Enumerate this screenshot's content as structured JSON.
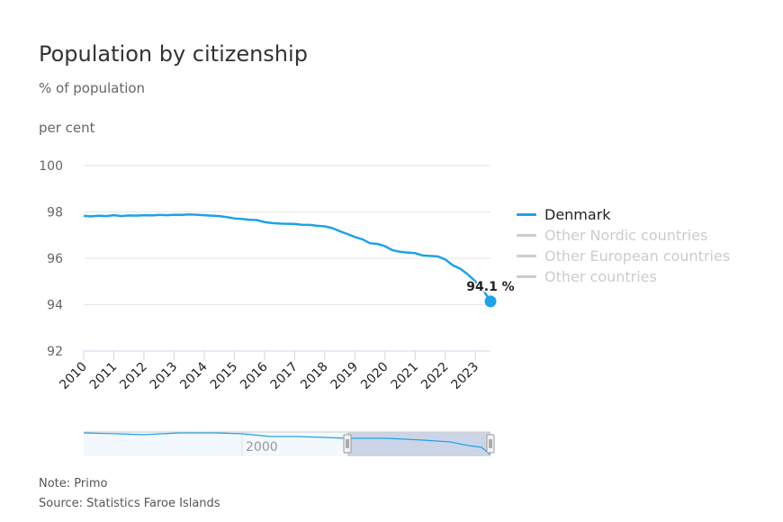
{
  "title": "Population by citizenship",
  "subtitle": "% of population",
  "unit_label": "per cent",
  "notes": {
    "note": "Note: Primo",
    "source": "Source: Statistics Faroe Islands"
  },
  "colors": {
    "series_active": "#1fa2e6",
    "series_inactive": "#cccccc",
    "grid": "#e6e6e6",
    "navigator_mask": "#c5cfe3"
  },
  "legend": [
    {
      "label": "Denmark",
      "active": true
    },
    {
      "label": "Other Nordic countries",
      "active": false
    },
    {
      "label": "Other European countries",
      "active": false
    },
    {
      "label": "Other countries",
      "active": false
    }
  ],
  "navigator": {
    "label": "2000"
  },
  "chart_data": {
    "type": "line",
    "title": "Population by citizenship",
    "subtitle": "% of population",
    "ylabel": "per cent",
    "xlabel": "",
    "ylim": [
      92,
      100
    ],
    "yticks": [
      92,
      94,
      96,
      98,
      100
    ],
    "xlim": [
      2010,
      2023.5
    ],
    "xticks": [
      "2010",
      "2011",
      "2012",
      "2013",
      "2014",
      "2015",
      "2016",
      "2017",
      "2018",
      "2019",
      "2020",
      "2021",
      "2022",
      "2023"
    ],
    "grid": true,
    "legend_position": "right",
    "end_label": "94.1 %",
    "series": [
      {
        "name": "Denmark",
        "visible": true,
        "x": [
          2010.0,
          2010.25,
          2010.5,
          2010.75,
          2011.0,
          2011.25,
          2011.5,
          2011.75,
          2012.0,
          2012.25,
          2012.5,
          2012.75,
          2013.0,
          2013.25,
          2013.5,
          2013.75,
          2014.0,
          2014.25,
          2014.5,
          2014.75,
          2015.0,
          2015.25,
          2015.5,
          2015.75,
          2016.0,
          2016.25,
          2016.5,
          2016.75,
          2017.0,
          2017.25,
          2017.5,
          2017.75,
          2018.0,
          2018.25,
          2018.5,
          2018.75,
          2019.0,
          2019.25,
          2019.5,
          2019.75,
          2020.0,
          2020.25,
          2020.5,
          2020.75,
          2021.0,
          2021.25,
          2021.5,
          2021.75,
          2022.0,
          2022.25,
          2022.5,
          2022.75,
          2023.0,
          2023.25,
          2023.5
        ],
        "values": [
          97.83,
          97.81,
          97.84,
          97.82,
          97.86,
          97.82,
          97.85,
          97.84,
          97.86,
          97.85,
          97.87,
          97.86,
          97.88,
          97.87,
          97.89,
          97.88,
          97.86,
          97.84,
          97.82,
          97.78,
          97.72,
          97.7,
          97.66,
          97.65,
          97.56,
          97.52,
          97.5,
          97.49,
          97.48,
          97.45,
          97.44,
          97.4,
          97.38,
          97.3,
          97.17,
          97.05,
          96.92,
          96.82,
          96.65,
          96.62,
          96.52,
          96.35,
          96.28,
          96.25,
          96.22,
          96.12,
          96.1,
          96.08,
          95.95,
          95.7,
          95.55,
          95.3,
          95.0,
          94.65,
          94.14
        ]
      },
      {
        "name": "Other Nordic countries",
        "visible": false
      },
      {
        "name": "Other European countries",
        "visible": false
      },
      {
        "name": "Other countries",
        "visible": false
      }
    ]
  }
}
